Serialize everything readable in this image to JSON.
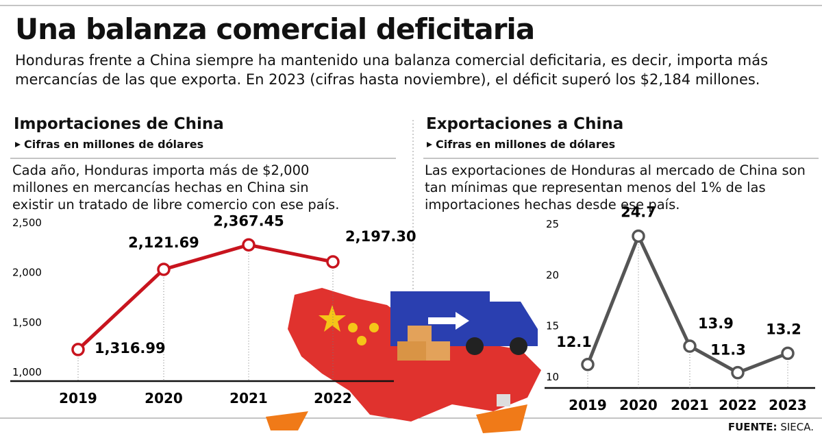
{
  "title": "Una balanza comercial deficitaria",
  "subtitle": "Honduras frente a China siempre ha mantenido una balanza comercial deficitaria, es decir, importa más mercancías de las que exporta. En 2023 (cifras hasta noviembre), el déficit superó los $2,184 millones.",
  "chart_data": [
    {
      "type": "line",
      "title": "Importaciones de China",
      "subtitle": "Cifras en millones de dólares",
      "description": "Cada año, Honduras importa más de $2,000 millones en mercancías hechas en China sin existir un tratado de libre comercio con ese país.",
      "categories": [
        "2019",
        "2020",
        "2021",
        "2022"
      ],
      "values": [
        1316.99,
        2121.69,
        2367.45,
        2197.3
      ],
      "value_labels": [
        "1,316.99",
        "2,121.69",
        "2,367.45",
        "2,197.30"
      ],
      "color": "#c8141e",
      "ylim": [
        1000,
        2500
      ],
      "yticks": [
        {
          "value": 1000,
          "label": "1,000"
        },
        {
          "value": 1500,
          "label": "1,500"
        },
        {
          "value": 2000,
          "label": "2,000"
        },
        {
          "value": 2500,
          "label": "2,500"
        }
      ]
    },
    {
      "type": "line",
      "title": "Exportaciones a China",
      "subtitle": "Cifras en millones de dólares",
      "description": "Las exportaciones de Honduras al mercado de China son tan mínimas que representan menos del 1% de las importaciones hechas desde ese país.",
      "categories": [
        "2019",
        "2020",
        "2021",
        "2022",
        "2023"
      ],
      "values": [
        12.1,
        24.7,
        13.9,
        11.3,
        13.2
      ],
      "color": "#555555",
      "ylim": [
        10,
        25
      ],
      "yticks": [
        10,
        15,
        20,
        25
      ]
    }
  ],
  "source": {
    "label": "FUENTE:",
    "text": "SIECA."
  }
}
